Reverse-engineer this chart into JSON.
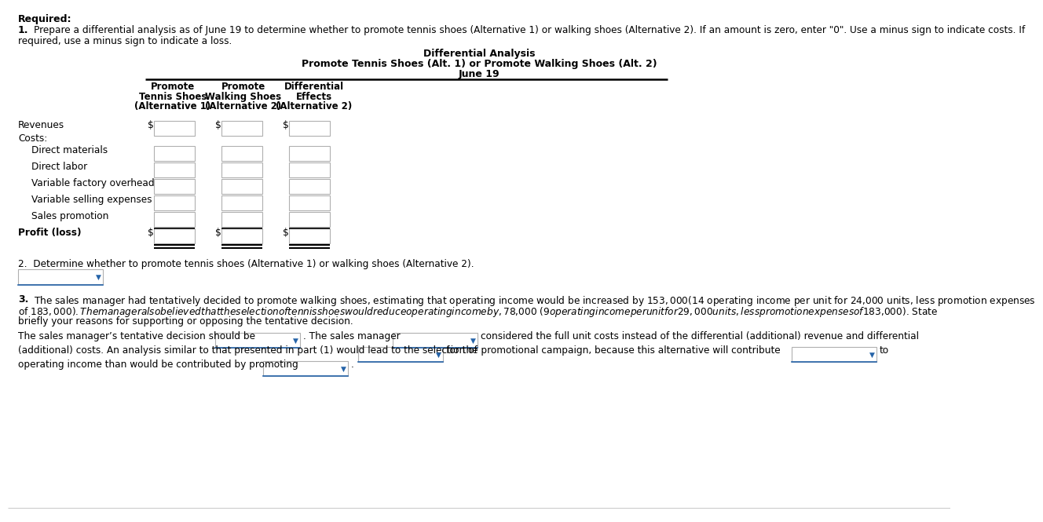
{
  "title_required": "Required:",
  "s1_num": "1.",
  "s1_text": "Prepare a differential analysis as of June 19 to determine whether to promote tennis shoes (Alternative 1) or walking shoes (Alternative 2). If an amount is zero, enter \"0\". Use a minus sign to indicate costs. If required, use a minus sign to indicate a loss.",
  "tbl_t1": "Differential Analysis",
  "tbl_t2": "Promote Tennis Shoes (Alt. 1) or Promote Walking Shoes (Alt. 2)",
  "tbl_t3": "June 19",
  "col_hdr": [
    [
      "Promote",
      "Tennis Shoes",
      "(Alternative 1)"
    ],
    [
      "Promote",
      "Walking Shoes",
      "(Alternative 2)"
    ],
    [
      "Differential",
      "Effects",
      "(Alternative 2)"
    ]
  ],
  "rows": [
    {
      "label": "Revenues",
      "indent": false,
      "dollar": true,
      "costs_hdr": false,
      "profit": false
    },
    {
      "label": "Costs:",
      "indent": false,
      "dollar": false,
      "costs_hdr": true,
      "profit": false
    },
    {
      "label": "Direct materials",
      "indent": true,
      "dollar": false,
      "costs_hdr": false,
      "profit": false
    },
    {
      "label": "Direct labor",
      "indent": true,
      "dollar": false,
      "costs_hdr": false,
      "profit": false
    },
    {
      "label": "Variable factory overhead",
      "indent": true,
      "dollar": false,
      "costs_hdr": false,
      "profit": false
    },
    {
      "label": "Variable selling expenses",
      "indent": true,
      "dollar": false,
      "costs_hdr": false,
      "profit": false
    },
    {
      "label": "Sales promotion",
      "indent": true,
      "dollar": false,
      "costs_hdr": false,
      "profit": false
    },
    {
      "label": "Profit (loss)",
      "indent": false,
      "dollar": true,
      "costs_hdr": false,
      "profit": true
    }
  ],
  "s2_text": "2.  Determine whether to promote tennis shoes (Alternative 1) or walking shoes (Alternative 2).",
  "s3_num": "3.",
  "s3_text": "The sales manager had tentatively decided to promote walking shoes, estimating that operating income would be increased by $153,000 ($14 operating income per unit for 24,000 units, less promotion expenses of $183,000). The manager also believed that the selection of tennis shoes would reduce operating income by, $78,000 ($9 operating income per unit for 29,000 units, less promotion expenses of $183,000). State briefly your reasons for supporting or opposing the tentative decision.",
  "s3_l1a": "The sales manager’s tentative decision should be",
  "s3_l1b": ". The sales manager",
  "s3_l1c": "considered the full unit costs instead of the differential (additional) revenue and differential",
  "s3_l2a": "(additional) costs. An analysis similar to that presented in part (1) would lead to the selection of",
  "s3_l2b": "for the promotional campaign, because this alternative will contribute",
  "s3_l2c": "to",
  "s3_l3a": "operating income than would be contributed by promoting",
  "s3_l3b": ".",
  "bg": "#ffffff",
  "tc": "#000000",
  "dc": "#2563a8",
  "bc": "#b0b0b0"
}
